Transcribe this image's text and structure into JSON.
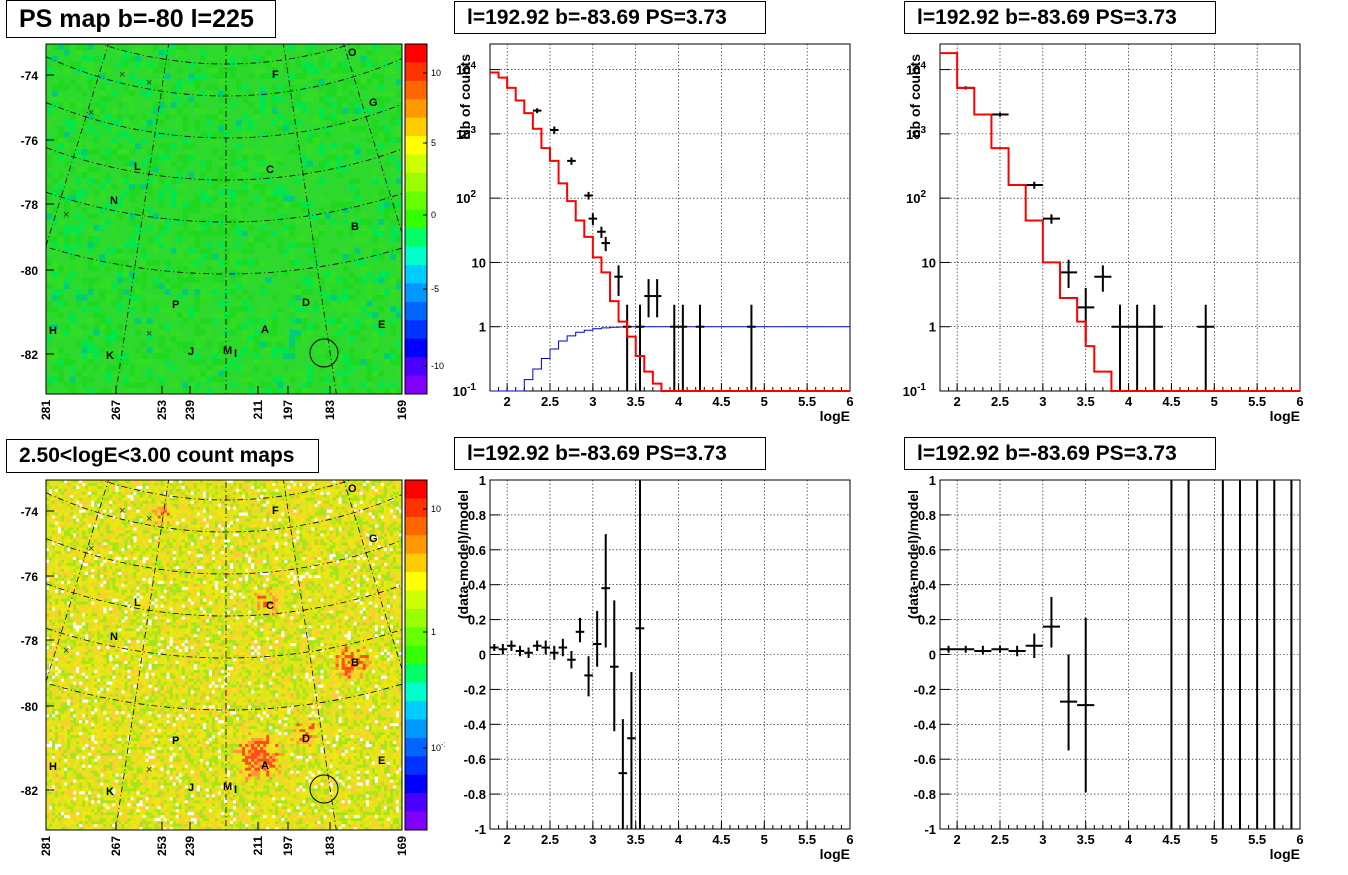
{
  "titles": {
    "map_top": "PS map b=-80 l=225",
    "map_bottom": "2.50<logE<3.00 count maps",
    "spec_top_mid": "l=192.92 b=-83.69 PS=3.73",
    "spec_top_right": "l=192.92 b=-83.69 PS=3.73",
    "res_bottom_mid": "l=192.92 b=-83.69 PS=3.73",
    "res_bottom_right": "l=192.92 b=-83.69 PS=3.73"
  },
  "chart_data": [
    {
      "id": "map_top",
      "type": "heatmap",
      "title": "PS map b=-80 l=225",
      "y_ticks": [
        "-74",
        "-76",
        "-78",
        "-80",
        "-82"
      ],
      "x_ticks": [
        "281",
        "267",
        "253",
        "239",
        "211",
        "197",
        "183",
        "169"
      ],
      "colorbar_ticks": [
        "10",
        "5",
        "0",
        "-5",
        "-10"
      ],
      "colorbar_range": [
        -13,
        13
      ],
      "source_labels": [
        "O",
        "F",
        "G",
        "L",
        "C",
        "N",
        "B",
        "P",
        "D",
        "E",
        "H",
        "A",
        "K",
        "J",
        "M",
        "I"
      ],
      "dominant_value": 0
    },
    {
      "id": "map_bottom",
      "type": "heatmap",
      "title": "2.50<logE<3.00 count maps",
      "log_scale": true,
      "y_ticks": [
        "-74",
        "-76",
        "-78",
        "-80",
        "-82"
      ],
      "x_ticks": [
        "281",
        "267",
        "253",
        "239",
        "211",
        "197",
        "183",
        "169"
      ],
      "colorbar_ticks": [
        "10",
        "1",
        "10-1"
      ],
      "source_labels": [
        "O",
        "F",
        "G",
        "L",
        "C",
        "N",
        "B",
        "P",
        "D",
        "E",
        "H",
        "A",
        "K",
        "J",
        "M",
        "I"
      ]
    },
    {
      "id": "spec_top_mid",
      "type": "line",
      "title": "l=192.92 b=-83.69 PS=3.73",
      "xlabel": "logE",
      "ylabel": "Nb of counts",
      "log_y": true,
      "xlim": [
        1.8,
        6
      ],
      "ylim": [
        0.1,
        25000
      ],
      "x_ticks": [
        "2",
        "2.5",
        "3",
        "3.5",
        "4",
        "4.5",
        "5",
        "5.5",
        "6"
      ],
      "y_ticks": [
        "10^4",
        "10^3",
        "10^2",
        "10",
        "1",
        "10^-1"
      ],
      "grid": true,
      "series": [
        {
          "style": "red_step",
          "bin_width": 0.1,
          "x": [
            1.8,
            1.9,
            2.0,
            2.1,
            2.2,
            2.3,
            2.4,
            2.5,
            2.6,
            2.7,
            2.8,
            2.9,
            3.0,
            3.1,
            3.2,
            3.3,
            3.4,
            3.5,
            3.6,
            3.7,
            3.8,
            3.9,
            4.0,
            6.0
          ],
          "values": [
            9000,
            7500,
            5200,
            3300,
            2100,
            1200,
            600,
            380,
            170,
            90,
            45,
            25,
            12,
            7,
            2.5,
            1.2,
            0.7,
            0.35,
            0.2,
            0.13,
            0.1,
            0.1,
            0.1,
            0.1
          ]
        },
        {
          "style": "blue_step",
          "bin_width": 0.1,
          "x": [
            1.8,
            1.9,
            2.0,
            2.1,
            2.2,
            2.3,
            2.4,
            2.5,
            2.6,
            2.7,
            2.8,
            2.9,
            3.0,
            3.1,
            3.2,
            3.3,
            3.4,
            3.5,
            3.6,
            3.7,
            6.0
          ],
          "values": [
            0.1,
            0.1,
            0.1,
            0.1,
            0.15,
            0.22,
            0.32,
            0.45,
            0.6,
            0.72,
            0.82,
            0.88,
            0.93,
            0.96,
            0.98,
            0.99,
            1,
            1,
            1,
            1,
            1
          ]
        },
        {
          "style": "black_points",
          "points": [
            [
              2.35,
              2300,
              2100,
              2500,
              0.05
            ],
            [
              2.55,
              1150,
              1000,
              1300,
              0.05
            ],
            [
              2.75,
              380,
              330,
              430,
              0.05
            ],
            [
              2.95,
              110,
              95,
              125,
              0.05
            ],
            [
              3.0,
              48,
              38,
              58,
              0.05
            ],
            [
              3.1,
              30,
              24,
              36,
              0.05
            ],
            [
              3.15,
              20,
              15,
              25,
              0.05
            ],
            [
              3.3,
              6,
              3,
              9,
              0.05
            ],
            [
              3.4,
              1,
              0.1,
              2.2,
              0.05
            ],
            [
              3.55,
              1,
              0.1,
              2.2,
              0.05
            ],
            [
              3.65,
              3,
              1.4,
              5.5,
              0.05
            ],
            [
              3.75,
              3,
              1.4,
              5.5,
              0.05
            ],
            [
              3.95,
              1,
              0.1,
              2.2,
              0.05
            ],
            [
              4.05,
              1,
              0.1,
              2.2,
              0.05
            ],
            [
              4.25,
              1,
              0.1,
              2.2,
              0.05
            ],
            [
              4.85,
              1,
              0.1,
              2.2,
              0.05
            ]
          ]
        }
      ]
    },
    {
      "id": "spec_top_right",
      "type": "line",
      "title": "l=192.92 b=-83.69 PS=3.73",
      "xlabel": "logE",
      "ylabel": "nb of counts",
      "log_y": true,
      "xlim": [
        1.8,
        6
      ],
      "ylim": [
        0.1,
        25000
      ],
      "x_ticks": [
        "2",
        "2.5",
        "3",
        "3.5",
        "4",
        "4.5",
        "5",
        "5.5",
        "6"
      ],
      "y_ticks": [
        "10^4",
        "10^3",
        "10^2",
        "10",
        "1",
        "10^-1"
      ],
      "grid": true,
      "series": [
        {
          "style": "red_step",
          "x": [
            1.8,
            2.0,
            2.2,
            2.4,
            2.6,
            2.8,
            3.0,
            3.2,
            3.4,
            3.5,
            3.6,
            3.8,
            4.0,
            6.0
          ],
          "values": [
            18000,
            5200,
            2000,
            600,
            160,
            45,
            10,
            2.8,
            1.2,
            0.5,
            0.2,
            0.1,
            0.1,
            0.1
          ]
        },
        {
          "style": "black_points",
          "points": [
            [
              2.1,
              5200,
              4900,
              5500,
              0.1
            ],
            [
              2.5,
              2000,
              1850,
              2150,
              0.1
            ],
            [
              2.9,
              160,
              140,
              180,
              0.1
            ],
            [
              3.1,
              48,
              40,
              56,
              0.1
            ],
            [
              3.3,
              7,
              4,
              11,
              0.1
            ],
            [
              3.5,
              2,
              0.6,
              4,
              0.1
            ],
            [
              3.7,
              6,
              3.5,
              9,
              0.1
            ],
            [
              3.9,
              1,
              0.1,
              2.2,
              0.1
            ],
            [
              4.1,
              1,
              0.1,
              2.2,
              0.1
            ],
            [
              4.3,
              1,
              0.1,
              2.2,
              0.1
            ],
            [
              4.9,
              1,
              0.1,
              2.2,
              0.1
            ]
          ]
        }
      ]
    },
    {
      "id": "res_bottom_mid",
      "type": "scatter",
      "title": "l=192.92 b=-83.69 PS=3.73",
      "xlabel": "logE",
      "ylabel": "(data-model)/model",
      "xlim": [
        1.8,
        6
      ],
      "ylim": [
        -1,
        1
      ],
      "x_ticks": [
        "2",
        "2.5",
        "3",
        "3.5",
        "4",
        "4.5",
        "5",
        "5.5",
        "6"
      ],
      "y_ticks": [
        "1",
        "0.8",
        "0.6",
        "0.4",
        "0.2",
        "0",
        "-0.2",
        "-0.4",
        "-0.6",
        "-0.8",
        "-1"
      ],
      "grid": true,
      "points": [
        [
          1.85,
          0.04,
          0.02,
          0.06,
          0.05
        ],
        [
          1.95,
          0.03,
          0.0,
          0.06,
          0.05
        ],
        [
          2.05,
          0.05,
          0.02,
          0.08,
          0.05
        ],
        [
          2.15,
          0.02,
          -0.01,
          0.05,
          0.05
        ],
        [
          2.25,
          0.01,
          -0.02,
          0.04,
          0.05
        ],
        [
          2.35,
          0.05,
          0.02,
          0.08,
          0.05
        ],
        [
          2.45,
          0.04,
          0.0,
          0.08,
          0.05
        ],
        [
          2.55,
          0.01,
          -0.03,
          0.05,
          0.05
        ],
        [
          2.65,
          0.04,
          -0.01,
          0.09,
          0.05
        ],
        [
          2.75,
          -0.03,
          -0.08,
          0.02,
          0.05
        ],
        [
          2.85,
          0.13,
          0.07,
          0.21,
          0.05
        ],
        [
          2.95,
          -0.12,
          -0.24,
          -0.01,
          0.05
        ],
        [
          3.05,
          0.06,
          -0.07,
          0.25,
          0.05
        ],
        [
          3.15,
          0.38,
          0.04,
          0.69,
          0.05
        ],
        [
          3.25,
          -0.07,
          -0.44,
          0.31,
          0.05
        ],
        [
          3.35,
          -0.68,
          -1.0,
          -0.37,
          0.05
        ],
        [
          3.45,
          -0.48,
          -1.0,
          -0.1,
          0.05
        ],
        [
          3.55,
          0.15,
          -1.0,
          1.0,
          0.05
        ]
      ]
    },
    {
      "id": "res_bottom_right",
      "type": "scatter",
      "title": "l=192.92 b=-83.69 PS=3.73",
      "xlabel": "logE",
      "ylabel": "(data-model)/model",
      "xlim": [
        1.8,
        6
      ],
      "ylim": [
        -1,
        1
      ],
      "x_ticks": [
        "2",
        "2.5",
        "3",
        "3.5",
        "4",
        "4.5",
        "5",
        "5.5",
        "6"
      ],
      "y_ticks": [
        "1",
        "0.8",
        "0.6",
        "0.4",
        "0.2",
        "0",
        "-0.2",
        "-0.4",
        "-0.6",
        "-0.8",
        "-1"
      ],
      "grid": true,
      "points": [
        [
          1.9,
          0.03,
          0.01,
          0.05,
          0.1
        ],
        [
          2.1,
          0.03,
          0.01,
          0.05,
          0.1
        ],
        [
          2.3,
          0.02,
          0.0,
          0.05,
          0.1
        ],
        [
          2.5,
          0.03,
          0.01,
          0.05,
          0.1
        ],
        [
          2.7,
          0.02,
          -0.01,
          0.05,
          0.1
        ],
        [
          2.9,
          0.05,
          -0.02,
          0.12,
          0.1
        ],
        [
          3.1,
          0.16,
          0.04,
          0.33,
          0.1
        ],
        [
          3.3,
          -0.27,
          -0.55,
          0.0,
          0.1
        ],
        [
          3.5,
          -0.29,
          -0.79,
          0.21,
          0.1
        ],
        [
          4.5,
          0,
          -1,
          1,
          0
        ],
        [
          4.7,
          0,
          -1,
          1,
          0
        ],
        [
          5.1,
          0,
          -1,
          1,
          0
        ],
        [
          5.3,
          0,
          -1,
          1,
          0
        ],
        [
          5.5,
          0,
          -1,
          1,
          0
        ],
        [
          5.7,
          0,
          -1,
          1,
          0
        ],
        [
          5.9,
          0,
          -1,
          1,
          0
        ]
      ]
    }
  ]
}
